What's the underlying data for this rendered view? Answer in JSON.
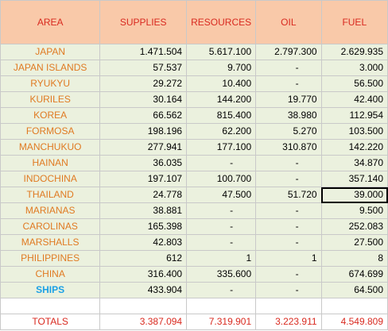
{
  "headers": {
    "area": "AREA",
    "supplies": "SUPPLIES",
    "resources": "RESOURCES",
    "oil": "OIL",
    "fuel": "FUEL"
  },
  "rows": [
    {
      "area": "JAPAN",
      "supplies": "1.471.504",
      "resources": "5.617.100",
      "oil": "2.797.300",
      "fuel": "2.629.935"
    },
    {
      "area": "JAPAN ISLANDS",
      "supplies": "57.537",
      "resources": "9.700",
      "oil": "-",
      "fuel": "3.000"
    },
    {
      "area": "RYUKYU",
      "supplies": "29.272",
      "resources": "10.400",
      "oil": "-",
      "fuel": "56.500"
    },
    {
      "area": "KURILES",
      "supplies": "30.164",
      "resources": "144.200",
      "oil": "19.770",
      "fuel": "42.400"
    },
    {
      "area": "KOREA",
      "supplies": "66.562",
      "resources": "815.400",
      "oil": "38.980",
      "fuel": "112.954"
    },
    {
      "area": "FORMOSA",
      "supplies": "198.196",
      "resources": "62.200",
      "oil": "5.270",
      "fuel": "103.500"
    },
    {
      "area": "MANCHUKUO",
      "supplies": "277.941",
      "resources": "177.100",
      "oil": "310.870",
      "fuel": "142.220"
    },
    {
      "area": "HAINAN",
      "supplies": "36.035",
      "resources": "-",
      "oil": "-",
      "fuel": "34.870"
    },
    {
      "area": "INDOCHINA",
      "supplies": "197.107",
      "resources": "100.700",
      "oil": "-",
      "fuel": "357.140"
    },
    {
      "area": "THAILAND",
      "supplies": "24.778",
      "resources": "47.500",
      "oil": "51.720",
      "fuel": "39.000"
    },
    {
      "area": "MARIANAS",
      "supplies": "38.881",
      "resources": "-",
      "oil": "-",
      "fuel": "9.500"
    },
    {
      "area": "CAROLINAS",
      "supplies": "165.398",
      "resources": "-",
      "oil": "-",
      "fuel": "252.083"
    },
    {
      "area": "MARSHALLS",
      "supplies": "42.803",
      "resources": "-",
      "oil": "-",
      "fuel": "27.500"
    },
    {
      "area": "PHILIPPINES",
      "supplies": "612",
      "resources": "1",
      "oil": "1",
      "fuel": "8"
    },
    {
      "area": "CHINA",
      "supplies": "316.400",
      "resources": "335.600",
      "oil": "-",
      "fuel": "674.699"
    },
    {
      "area": "SHIPS",
      "supplies": "433.904",
      "resources": "-",
      "oil": "-",
      "fuel": "64.500"
    }
  ],
  "totals": {
    "area": "TOTALS",
    "supplies": "3.387.094",
    "resources": "7.319.901",
    "oil": "3.223.911",
    "fuel": "4.549.809"
  },
  "colors": {
    "header_bg": "#f9c9a9",
    "header_text": "#d92a20",
    "area_text": "#e07a22",
    "ships_text": "#1aa0e6",
    "data_bg": "#ebf1de",
    "grid": "#c9c9c9"
  }
}
